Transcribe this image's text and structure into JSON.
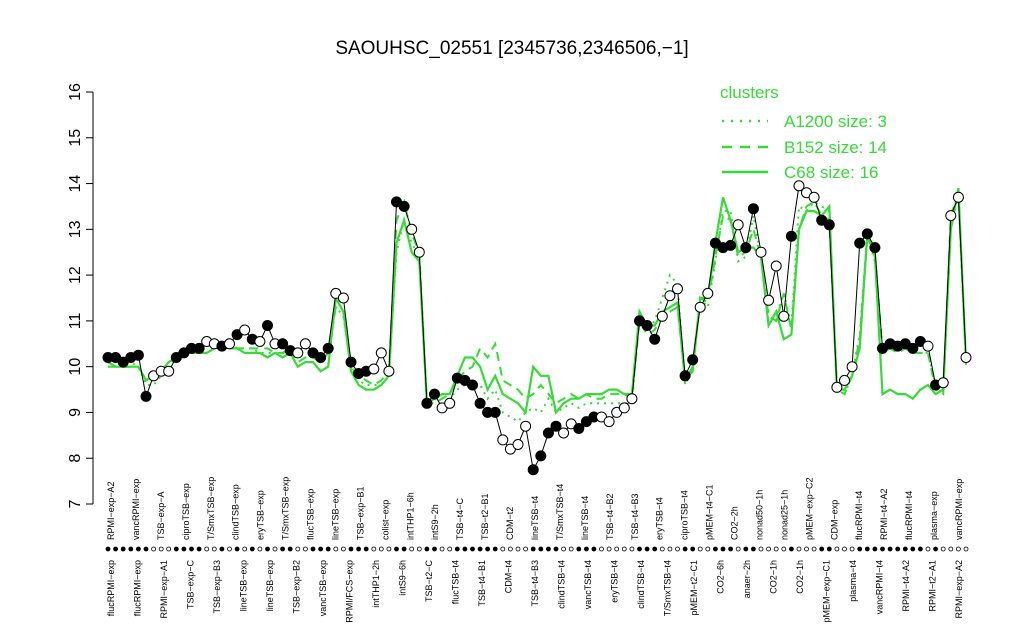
{
  "chart_data": {
    "type": "line",
    "title": "SAOUHSC_02551 [2345736,2346506,−1]",
    "xlabel": "",
    "ylabel": "",
    "ylim": [
      7,
      16
    ],
    "yticks": [
      7,
      8,
      9,
      10,
      11,
      12,
      13,
      14,
      15,
      16
    ],
    "colors": {
      "cluster": "#33dd33",
      "points": "#000000",
      "axis": "#000000"
    },
    "legend": {
      "title": "clusters",
      "position": "top-right",
      "entries": [
        {
          "label": "A1200 size: 3",
          "style": "dotted"
        },
        {
          "label": "B152 size: 14",
          "style": "dashed"
        },
        {
          "label": "C68 size: 16",
          "style": "solid"
        }
      ]
    },
    "labels_top": [
      "RPMI−exp−A2",
      "vancRPMI−exp",
      "TSB−exp−A",
      "ciproTSB−exp",
      "T/SmxTSB−exp",
      "clindTSB−exp",
      "eryTSB−exp",
      "T/SmxTSB−exp",
      "flucTSB−exp",
      "lineTSB−exp",
      "TSB−exp−B1",
      "colist−exp",
      "intTHP1−6h",
      "intS9−2h",
      "TSB−t4−C",
      "TSB−t2−B1",
      "CDM−t2",
      "lineTSB−t4",
      "T/SmxTSB−t4",
      "lineTSB−t4",
      "TSB−t4−B2",
      "TSB−t4−B3",
      "eryTSB−t4",
      "ciproTSB−t4",
      "pMEM−t4−C1",
      "CO2−2h",
      "nonad50−1h",
      "nonad25−1h",
      "pMEM−exp−C2",
      "CDM−exp",
      "flucRPMI−t4",
      "RPMI−t4−A2",
      "flucRPMI−t4",
      "plasma−exp",
      "vancRPMI−exp"
    ],
    "labels_bottom": [
      "flucRPMI−exp",
      "flucRPMI−exp",
      "RPMI−exp−A1",
      "TSB−exp−C",
      "TSB−exp−B3",
      "lineTSB−exp",
      "lineTSB−exp",
      "TSB−exp−B2",
      "vancTSB−exp",
      "RPMI/FCS−exp",
      "intTHP1−2h",
      "intS9−6h",
      "TSB−t2−C",
      "flucTSB−t4",
      "TSB−t4−B1",
      "CDM−t4",
      "TSB−t4−B3",
      "clindTSB−t4",
      "vancTSB−t4",
      "eryTSB−t4",
      "clindTSB−t4",
      "T/SmxTSB−t4",
      "pMEM−t2−C1",
      "CO2−6h",
      "anaer−2h",
      "CO2−1h",
      "CO2−1h",
      "pMEM−exp−C1",
      "plasma−t4",
      "vancRPMI−t4",
      "RPMI−t4−A2",
      "RPMI−t2−A1",
      "RPMI−exp−A2"
    ],
    "series": [
      {
        "name": "A1200 size: 3",
        "style": "dotted",
        "values": [
          10.1,
          10.0,
          10.1,
          10.1,
          10.0,
          9.6,
          9.6,
          9.8,
          10.0,
          10.2,
          10.3,
          10.3,
          10.3,
          10.3,
          10.4,
          10.5,
          10.5,
          10.4,
          10.4,
          10.4,
          10.3,
          10.3,
          10.3,
          10.3,
          10.3,
          10.2,
          10.4,
          10.3,
          10.1,
          10.3,
          11.3,
          11.1,
          10.0,
          9.7,
          9.6,
          9.6,
          9.6,
          9.8,
          12.5,
          13.2,
          12.7,
          12.4,
          9.3,
          9.3,
          9.3,
          9.3,
          9.5,
          9.6,
          9.5,
          9.6,
          9.3,
          9.5,
          9.0,
          8.9,
          8.8,
          9.0,
          9.1,
          9.0,
          9.3,
          9.0,
          9.1,
          9.2,
          9.1,
          9.2,
          9.2,
          9.2,
          9.2,
          9.2,
          9.2,
          9.2,
          11.1,
          10.8,
          11.0,
          11.5,
          12.0,
          11.8,
          9.6,
          10.0,
          11.5,
          11.3,
          12.3,
          13.4,
          13.4,
          12.3,
          12.4,
          13.3,
          12.4,
          11.2,
          11.1,
          11.6,
          10.9,
          13.5,
          13.4,
          13.6,
          13.5,
          13.4,
          9.5,
          9.4,
          9.8,
          10.7,
          12.9,
          12.3,
          10.4,
          10.6,
          10.4,
          10.5,
          10.3,
          10.3,
          10.3,
          9.6,
          9.4,
          13.0,
          13.8,
          10.0
        ]
      },
      {
        "name": "B152 size: 14",
        "style": "dashed",
        "values": [
          10.0,
          10.0,
          10.0,
          10.0,
          10.0,
          9.7,
          9.8,
          9.9,
          10.1,
          10.2,
          10.3,
          10.3,
          10.4,
          10.3,
          10.4,
          10.5,
          10.4,
          10.4,
          10.4,
          10.4,
          10.4,
          10.4,
          10.3,
          10.3,
          10.4,
          10.1,
          10.2,
          10.2,
          10.1,
          10.3,
          11.3,
          11.2,
          10.0,
          9.8,
          9.7,
          9.6,
          9.7,
          9.9,
          13.2,
          13.6,
          12.9,
          12.5,
          9.2,
          9.2,
          9.3,
          9.4,
          9.7,
          9.9,
          10.0,
          10.4,
          10.2,
          10.5,
          9.7,
          9.6,
          9.5,
          9.3,
          9.4,
          9.6,
          9.4,
          9.2,
          9.3,
          9.4,
          9.3,
          9.4,
          9.3,
          9.3,
          9.4,
          9.4,
          9.4,
          9.3,
          11.0,
          10.7,
          10.8,
          11.1,
          11.2,
          11.3,
          9.7,
          10.0,
          11.5,
          11.4,
          12.4,
          13.3,
          13.2,
          12.4,
          12.5,
          13.0,
          12.4,
          11.1,
          11.0,
          11.6,
          10.8,
          13.0,
          13.5,
          13.6,
          13.3,
          13.2,
          9.5,
          9.4,
          9.8,
          10.6,
          12.8,
          12.5,
          10.3,
          10.4,
          10.3,
          10.4,
          10.3,
          10.3,
          10.3,
          9.5,
          9.4,
          13.3,
          13.8,
          10.1
        ]
      },
      {
        "name": "C68 size: 16",
        "style": "solid",
        "values": [
          10.1,
          10.0,
          10.0,
          10.0,
          10.0,
          9.7,
          9.8,
          9.9,
          10.1,
          10.2,
          10.3,
          10.3,
          10.3,
          10.3,
          10.4,
          10.5,
          10.4,
          10.4,
          10.3,
          10.3,
          10.3,
          10.2,
          10.3,
          10.2,
          10.3,
          10.0,
          10.1,
          10.1,
          9.9,
          10.0,
          11.5,
          11.2,
          9.9,
          9.6,
          9.5,
          9.5,
          9.6,
          9.8,
          12.7,
          13.2,
          12.5,
          12.3,
          9.2,
          9.3,
          9.4,
          9.4,
          9.8,
          10.2,
          10.2,
          10.0,
          9.5,
          9.8,
          9.4,
          9.3,
          9.2,
          9.0,
          10.0,
          9.8,
          9.8,
          9.0,
          9.2,
          9.3,
          9.3,
          9.4,
          9.4,
          9.4,
          9.5,
          9.5,
          9.4,
          9.4,
          11.2,
          10.9,
          10.9,
          11.2,
          11.3,
          11.4,
          9.7,
          9.9,
          11.5,
          11.5,
          12.7,
          13.7,
          13.2,
          12.5,
          12.6,
          12.6,
          12.4,
          10.9,
          11.2,
          10.6,
          10.7,
          13.0,
          13.4,
          13.4,
          13.3,
          13.5,
          9.5,
          9.5,
          9.8,
          10.4,
          12.9,
          12.4,
          9.4,
          9.5,
          9.4,
          9.4,
          9.3,
          9.5,
          9.6,
          9.4,
          9.5,
          13.0,
          13.9,
          10.1
        ]
      },
      {
        "name": "",
        "style": "points",
        "values": [
          10.2,
          10.2,
          10.1,
          10.2,
          10.25,
          9.35,
          9.8,
          9.9,
          9.9,
          10.2,
          10.3,
          10.4,
          10.4,
          10.55,
          10.5,
          10.45,
          10.5,
          10.7,
          10.8,
          10.6,
          10.55,
          10.9,
          10.5,
          10.5,
          10.35,
          10.3,
          10.5,
          10.3,
          10.2,
          10.4,
          11.6,
          11.5,
          10.1,
          9.85,
          9.9,
          9.95,
          10.3,
          9.9,
          13.6,
          13.5,
          13.0,
          12.5,
          9.2,
          9.4,
          9.1,
          9.2,
          9.75,
          9.7,
          9.6,
          9.2,
          9.0,
          9.0,
          8.4,
          8.2,
          8.3,
          8.7,
          7.75,
          8.05,
          8.55,
          8.7,
          8.55,
          8.75,
          8.65,
          8.8,
          8.9,
          8.9,
          8.8,
          9.0,
          9.1,
          9.3,
          11.0,
          10.9,
          10.6,
          11.1,
          11.55,
          11.7,
          9.8,
          10.15,
          11.3,
          11.6,
          12.7,
          12.6,
          12.65,
          13.1,
          12.6,
          13.45,
          12.5,
          11.45,
          12.2,
          11.1,
          12.85,
          13.95,
          13.8,
          13.7,
          13.2,
          13.1,
          9.55,
          9.7,
          10.0,
          12.7,
          12.9,
          12.6,
          10.4,
          10.5,
          10.45,
          10.5,
          10.4,
          10.55,
          10.45,
          9.6,
          9.65,
          13.3,
          13.7,
          10.2
        ]
      },
      {
        "name": "",
        "style": "points-filled",
        "values": [
          1,
          1,
          1,
          1,
          1,
          1,
          0,
          0,
          0,
          1,
          1,
          1,
          1,
          0,
          0,
          1,
          0,
          1,
          0,
          1,
          0,
          1,
          0,
          1,
          1,
          0,
          0,
          1,
          1,
          1,
          0,
          0,
          1,
          1,
          1,
          0,
          0,
          0,
          1,
          1,
          0,
          0,
          1,
          1,
          0,
          0,
          1,
          1,
          1,
          1,
          1,
          1,
          0,
          0,
          0,
          0,
          1,
          1,
          1,
          1,
          0,
          0,
          1,
          1,
          1,
          0,
          0,
          0,
          0,
          0,
          1,
          1,
          1,
          0,
          0,
          0,
          1,
          1,
          0,
          0,
          1,
          1,
          1,
          0,
          1,
          1,
          0,
          0,
          0,
          0,
          1,
          0,
          0,
          0,
          1,
          1,
          0,
          0,
          0,
          1,
          1,
          1,
          1,
          1,
          1,
          1,
          1,
          1,
          0,
          1,
          0,
          0,
          0,
          0
        ]
      }
    ]
  }
}
